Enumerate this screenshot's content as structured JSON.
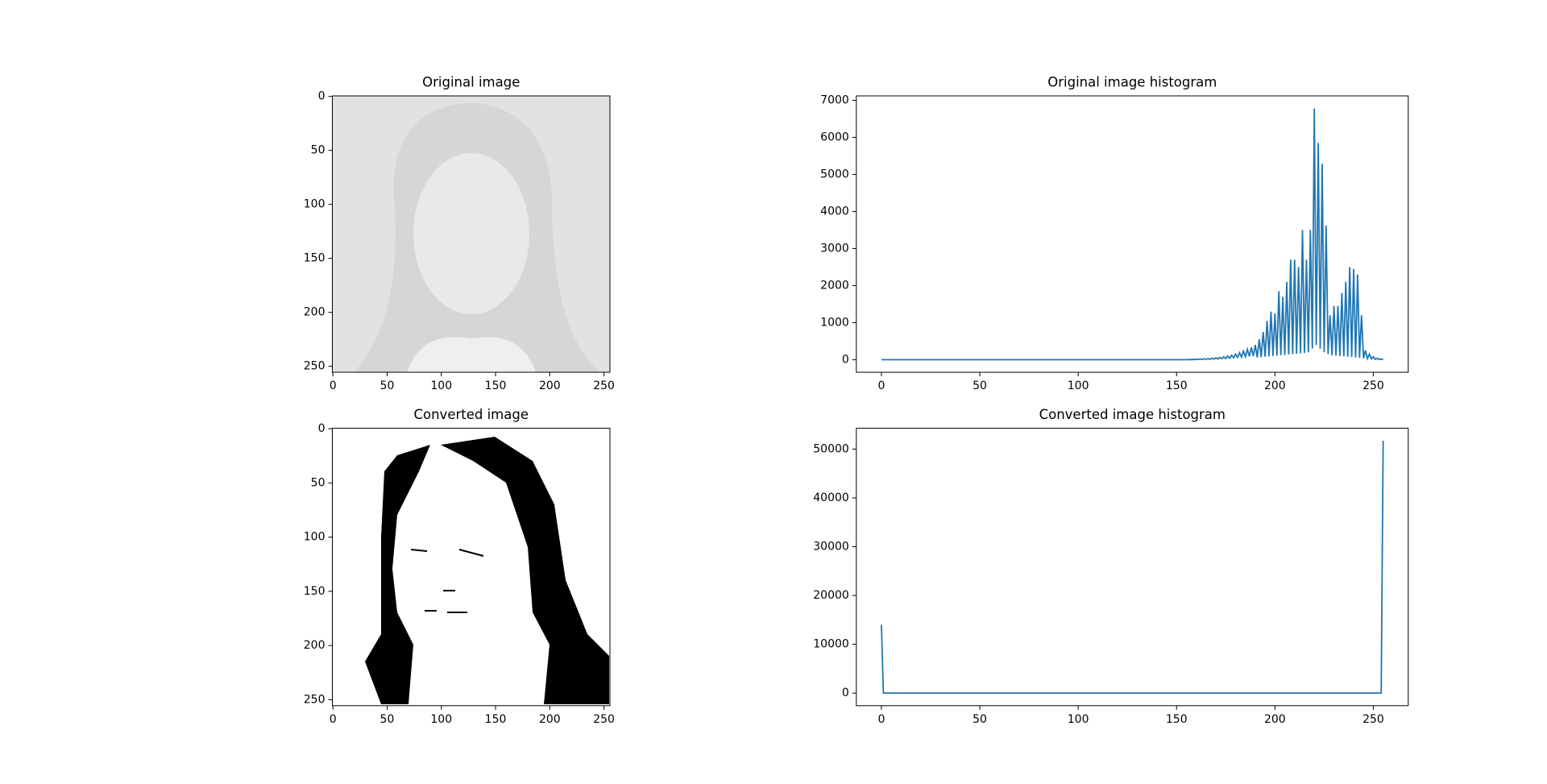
{
  "chart_data": [
    {
      "type": "image",
      "title": "Original image",
      "xlim": [
        -0.5,
        255.5
      ],
      "ylim": [
        255.5,
        -0.5
      ],
      "xticks": [
        0,
        50,
        100,
        150,
        200,
        250
      ],
      "yticks": [
        0,
        50,
        100,
        150,
        200,
        250
      ]
    },
    {
      "type": "line",
      "title": "Original image histogram",
      "color": "#1f77b4",
      "xlim": [
        -12.75,
        267.75
      ],
      "ylim": [
        -339,
        7119
      ],
      "xticks": [
        0,
        50,
        100,
        150,
        200,
        250
      ],
      "yticks": [
        0,
        1000,
        2000,
        3000,
        4000,
        5000,
        6000,
        7000
      ],
      "x": [
        0,
        1,
        2,
        3,
        4,
        5,
        6,
        7,
        8,
        9,
        10,
        11,
        12,
        13,
        14,
        15,
        16,
        17,
        18,
        19,
        20,
        21,
        22,
        23,
        24,
        25,
        26,
        27,
        28,
        29,
        30,
        31,
        32,
        33,
        34,
        35,
        36,
        37,
        38,
        39,
        40,
        41,
        42,
        43,
        44,
        45,
        46,
        47,
        48,
        49,
        50,
        51,
        52,
        53,
        54,
        55,
        56,
        57,
        58,
        59,
        60,
        61,
        62,
        63,
        64,
        65,
        66,
        67,
        68,
        69,
        70,
        71,
        72,
        73,
        74,
        75,
        76,
        77,
        78,
        79,
        80,
        81,
        82,
        83,
        84,
        85,
        86,
        87,
        88,
        89,
        90,
        91,
        92,
        93,
        94,
        95,
        96,
        97,
        98,
        99,
        100,
        101,
        102,
        103,
        104,
        105,
        106,
        107,
        108,
        109,
        110,
        111,
        112,
        113,
        114,
        115,
        116,
        117,
        118,
        119,
        120,
        121,
        122,
        123,
        124,
        125,
        126,
        127,
        128,
        129,
        130,
        131,
        132,
        133,
        134,
        135,
        136,
        137,
        138,
        139,
        140,
        141,
        142,
        143,
        144,
        145,
        146,
        147,
        148,
        149,
        150,
        151,
        152,
        153,
        154,
        155,
        156,
        157,
        158,
        159,
        160,
        161,
        162,
        163,
        164,
        165,
        166,
        167,
        168,
        169,
        170,
        171,
        172,
        173,
        174,
        175,
        176,
        177,
        178,
        179,
        180,
        181,
        182,
        183,
        184,
        185,
        186,
        187,
        188,
        189,
        190,
        191,
        192,
        193,
        194,
        195,
        196,
        197,
        198,
        199,
        200,
        201,
        202,
        203,
        204,
        205,
        206,
        207,
        208,
        209,
        210,
        211,
        212,
        213,
        214,
        215,
        216,
        217,
        218,
        219,
        220,
        221,
        222,
        223,
        224,
        225,
        226,
        227,
        228,
        229,
        230,
        231,
        232,
        233,
        234,
        235,
        236,
        237,
        238,
        239,
        240,
        241,
        242,
        243,
        244,
        245,
        246,
        247,
        248,
        249,
        250,
        251,
        252,
        253,
        254,
        255
      ],
      "values": [
        0,
        0,
        0,
        0,
        0,
        0,
        0,
        0,
        0,
        0,
        0,
        0,
        0,
        0,
        0,
        0,
        0,
        0,
        0,
        0,
        0,
        0,
        0,
        0,
        0,
        0,
        0,
        0,
        0,
        0,
        0,
        0,
        0,
        0,
        0,
        0,
        0,
        0,
        0,
        0,
        0,
        0,
        0,
        0,
        0,
        0,
        0,
        0,
        0,
        0,
        0,
        0,
        0,
        0,
        0,
        0,
        0,
        0,
        0,
        0,
        0,
        0,
        0,
        0,
        0,
        0,
        0,
        0,
        0,
        0,
        0,
        0,
        0,
        0,
        0,
        0,
        0,
        0,
        0,
        0,
        0,
        0,
        0,
        0,
        0,
        0,
        0,
        0,
        0,
        0,
        0,
        0,
        0,
        0,
        0,
        0,
        0,
        0,
        0,
        0,
        0,
        0,
        0,
        0,
        0,
        0,
        0,
        0,
        0,
        0,
        0,
        0,
        0,
        0,
        0,
        0,
        0,
        0,
        0,
        0,
        0,
        0,
        0,
        0,
        0,
        0,
        0,
        0,
        0,
        0,
        0,
        0,
        0,
        0,
        0,
        0,
        0,
        0,
        0,
        0,
        0,
        0,
        0,
        0,
        0,
        0,
        0,
        0,
        0,
        0,
        0,
        0,
        0,
        0,
        0,
        0,
        5,
        0,
        10,
        0,
        15,
        5,
        20,
        5,
        25,
        10,
        30,
        10,
        40,
        15,
        50,
        20,
        60,
        25,
        80,
        30,
        100,
        40,
        120,
        50,
        150,
        60,
        190,
        70,
        230,
        80,
        280,
        90,
        330,
        100,
        400,
        60,
        550,
        70,
        750,
        80,
        1050,
        90,
        1300,
        100,
        1250,
        110,
        1850,
        120,
        1700,
        130,
        2100,
        140,
        2700,
        150,
        2700,
        160,
        2500,
        170,
        3500,
        180,
        2700,
        200,
        3500,
        300,
        6780,
        400,
        5850,
        300,
        5290,
        200,
        3620,
        150,
        1200,
        120,
        1450,
        110,
        1450,
        100,
        1800,
        90,
        2100,
        80,
        2500,
        70,
        2450,
        60,
        2300,
        50,
        1200,
        40,
        250,
        30,
        150,
        20,
        80,
        10,
        40,
        5,
        20,
        0
      ]
    },
    {
      "type": "image",
      "title": "Converted image",
      "xlim": [
        -0.5,
        255.5
      ],
      "ylim": [
        255.5,
        -0.5
      ],
      "xticks": [
        0,
        50,
        100,
        150,
        200,
        250
      ],
      "yticks": [
        0,
        50,
        100,
        150,
        200,
        250
      ]
    },
    {
      "type": "line",
      "title": "Converted image histogram",
      "color": "#1f77b4",
      "xlim": [
        -12.75,
        267.75
      ],
      "ylim": [
        -2585,
        54285
      ],
      "xticks": [
        0,
        50,
        100,
        150,
        200,
        250
      ],
      "yticks": [
        0,
        10000,
        20000,
        30000,
        40000,
        50000
      ],
      "x": [
        0,
        1,
        2,
        3,
        4,
        5,
        6,
        7,
        8,
        9,
        10,
        11,
        12,
        13,
        14,
        15,
        16,
        17,
        18,
        19,
        20,
        21,
        22,
        23,
        24,
        25,
        26,
        27,
        28,
        29,
        30,
        31,
        32,
        33,
        34,
        35,
        36,
        37,
        38,
        39,
        40,
        41,
        42,
        43,
        44,
        45,
        46,
        47,
        48,
        49,
        50,
        51,
        52,
        53,
        54,
        55,
        56,
        57,
        58,
        59,
        60,
        61,
        62,
        63,
        64,
        65,
        66,
        67,
        68,
        69,
        70,
        71,
        72,
        73,
        74,
        75,
        76,
        77,
        78,
        79,
        80,
        81,
        82,
        83,
        84,
        85,
        86,
        87,
        88,
        89,
        90,
        91,
        92,
        93,
        94,
        95,
        96,
        97,
        98,
        99,
        100,
        101,
        102,
        103,
        104,
        105,
        106,
        107,
        108,
        109,
        110,
        111,
        112,
        113,
        114,
        115,
        116,
        117,
        118,
        119,
        120,
        121,
        122,
        123,
        124,
        125,
        126,
        127,
        128,
        129,
        130,
        131,
        132,
        133,
        134,
        135,
        136,
        137,
        138,
        139,
        140,
        141,
        142,
        143,
        144,
        145,
        146,
        147,
        148,
        149,
        150,
        151,
        152,
        153,
        154,
        155,
        156,
        157,
        158,
        159,
        160,
        161,
        162,
        163,
        164,
        165,
        166,
        167,
        168,
        169,
        170,
        171,
        172,
        173,
        174,
        175,
        176,
        177,
        178,
        179,
        180,
        181,
        182,
        183,
        184,
        185,
        186,
        187,
        188,
        189,
        190,
        191,
        192,
        193,
        194,
        195,
        196,
        197,
        198,
        199,
        200,
        201,
        202,
        203,
        204,
        205,
        206,
        207,
        208,
        209,
        210,
        211,
        212,
        213,
        214,
        215,
        216,
        217,
        218,
        219,
        220,
        221,
        222,
        223,
        224,
        225,
        226,
        227,
        228,
        229,
        230,
        231,
        232,
        233,
        234,
        235,
        236,
        237,
        238,
        239,
        240,
        241,
        242,
        243,
        244,
        245,
        246,
        247,
        248,
        249,
        250,
        251,
        252,
        253,
        254,
        255
      ],
      "values": [
        14000,
        0,
        0,
        0,
        0,
        0,
        0,
        0,
        0,
        0,
        0,
        0,
        0,
        0,
        0,
        0,
        0,
        0,
        0,
        0,
        0,
        0,
        0,
        0,
        0,
        0,
        0,
        0,
        0,
        0,
        0,
        0,
        0,
        0,
        0,
        0,
        0,
        0,
        0,
        0,
        0,
        0,
        0,
        0,
        0,
        0,
        0,
        0,
        0,
        0,
        0,
        0,
        0,
        0,
        0,
        0,
        0,
        0,
        0,
        0,
        0,
        0,
        0,
        0,
        0,
        0,
        0,
        0,
        0,
        0,
        0,
        0,
        0,
        0,
        0,
        0,
        0,
        0,
        0,
        0,
        0,
        0,
        0,
        0,
        0,
        0,
        0,
        0,
        0,
        0,
        0,
        0,
        0,
        0,
        0,
        0,
        0,
        0,
        0,
        0,
        0,
        0,
        0,
        0,
        0,
        0,
        0,
        0,
        0,
        0,
        0,
        0,
        0,
        0,
        0,
        0,
        0,
        0,
        0,
        0,
        0,
        0,
        0,
        0,
        0,
        0,
        0,
        0,
        0,
        0,
        0,
        0,
        0,
        0,
        0,
        0,
        0,
        0,
        0,
        0,
        0,
        0,
        0,
        0,
        0,
        0,
        0,
        0,
        0,
        0,
        0,
        0,
        0,
        0,
        0,
        0,
        0,
        0,
        0,
        0,
        0,
        0,
        0,
        0,
        0,
        0,
        0,
        0,
        0,
        0,
        0,
        0,
        0,
        0,
        0,
        0,
        0,
        0,
        0,
        0,
        0,
        0,
        0,
        0,
        0,
        0,
        0,
        0,
        0,
        0,
        0,
        0,
        0,
        0,
        0,
        0,
        0,
        0,
        0,
        0,
        0,
        0,
        0,
        0,
        0,
        0,
        0,
        0,
        0,
        0,
        0,
        0,
        0,
        0,
        0,
        0,
        0,
        0,
        0,
        0,
        0,
        0,
        0,
        0,
        0,
        0,
        0,
        0,
        0,
        0,
        0,
        0,
        0,
        0,
        0,
        0,
        0,
        0,
        0,
        0,
        0,
        0,
        0,
        0,
        0,
        0,
        0,
        0,
        0,
        0,
        0,
        0,
        0,
        0,
        0,
        51700
      ]
    }
  ]
}
